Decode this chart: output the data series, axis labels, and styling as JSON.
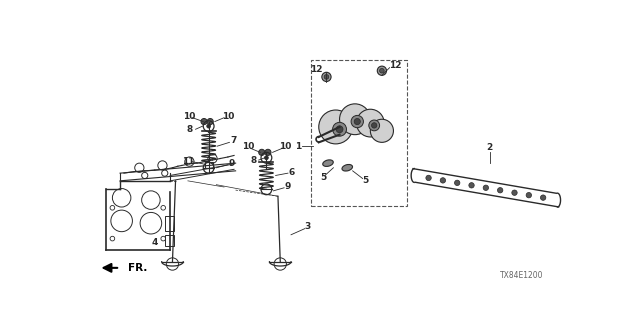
{
  "bg_color": "#ffffff",
  "diagram_id": "TX84E1200",
  "fig_width": 6.4,
  "fig_height": 3.2,
  "dpi": 100,
  "lc": "#2a2a2a",
  "fs": 6.5
}
